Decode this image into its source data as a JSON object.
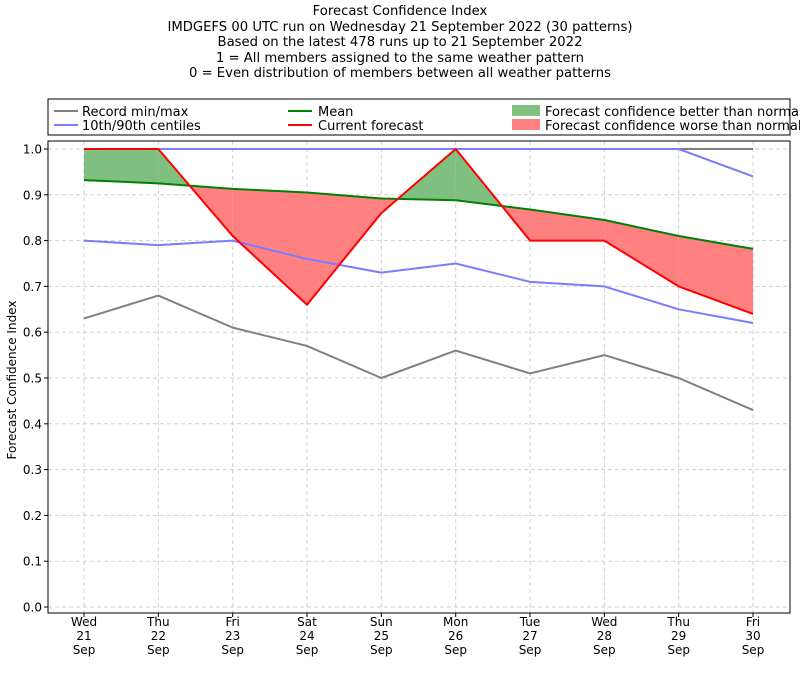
{
  "title_lines": [
    "Forecast Confidence Index",
    "IMDGEFS 00 UTC run on Wednesday 21 September 2022 (30 patterns)",
    "Based on the latest 478 runs up to 21 September 2022",
    "1 = All members assigned to the same weather pattern",
    "0 = Even distribution of members between all weather patterns"
  ],
  "colors": {
    "record": "#808080",
    "centiles": "#7b7bff",
    "mean": "#008000",
    "current": "#ff0000",
    "better_fill": "#7fbf7f",
    "worse_fill": "#ff8080",
    "grid": "#cfcfcf"
  },
  "chart_data": {
    "type": "line",
    "ylabel": "Forecast Confidence Index",
    "ylim": [
      0,
      1.0
    ],
    "yticks": [
      "0.0",
      "0.1",
      "0.2",
      "0.3",
      "0.4",
      "0.5",
      "0.6",
      "0.7",
      "0.8",
      "0.9",
      "1.0"
    ],
    "grid": true,
    "legend_placement": "top",
    "categories": [
      [
        "Wed",
        "21",
        "Sep"
      ],
      [
        "Thu",
        "22",
        "Sep"
      ],
      [
        "Fri",
        "23",
        "Sep"
      ],
      [
        "Sat",
        "24",
        "Sep"
      ],
      [
        "Sun",
        "25",
        "Sep"
      ],
      [
        "Mon",
        "26",
        "Sep"
      ],
      [
        "Tue",
        "27",
        "Sep"
      ],
      [
        "Wed",
        "28",
        "Sep"
      ],
      [
        "Thu",
        "29",
        "Sep"
      ],
      [
        "Fri",
        "30",
        "Sep"
      ]
    ],
    "series": [
      {
        "name": "Record min/max",
        "key": "record_min",
        "values": [
          0.63,
          0.68,
          0.61,
          0.57,
          0.5,
          0.56,
          0.51,
          0.55,
          0.5,
          0.43
        ]
      },
      {
        "name": "Record min/max",
        "key": "record_max",
        "values": [
          1.0,
          1.0,
          1.0,
          1.0,
          1.0,
          1.0,
          1.0,
          1.0,
          1.0,
          1.0
        ]
      },
      {
        "name": "10th/90th centiles",
        "key": "p10",
        "values": [
          0.8,
          0.79,
          0.8,
          0.76,
          0.73,
          0.75,
          0.71,
          0.7,
          0.65,
          0.62
        ]
      },
      {
        "name": "10th/90th centiles",
        "key": "p90",
        "values": [
          1.0,
          1.0,
          1.0,
          1.0,
          1.0,
          1.0,
          1.0,
          1.0,
          1.0,
          0.94
        ]
      },
      {
        "name": "Mean",
        "key": "mean",
        "values": [
          0.932,
          0.925,
          0.913,
          0.905,
          0.892,
          0.888,
          0.868,
          0.845,
          0.81,
          0.782
        ]
      },
      {
        "name": "Current forecast",
        "key": "current",
        "values": [
          1.0,
          1.0,
          0.81,
          0.66,
          0.86,
          1.0,
          0.8,
          0.8,
          0.7,
          0.64
        ]
      }
    ],
    "legend": [
      "Record min/max",
      "10th/90th centiles",
      "Mean",
      "Current forecast",
      "Forecast confidence better than normal",
      "Forecast confidence worse than normal"
    ]
  }
}
